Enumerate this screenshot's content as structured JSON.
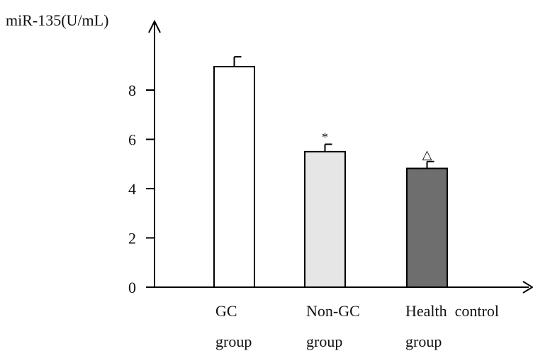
{
  "chart_data": {
    "type": "bar",
    "ylabel": "miR-135(U/mL)",
    "ylim": [
      0,
      10
    ],
    "yticks": [
      0,
      2,
      4,
      6,
      8
    ],
    "categories": [
      {
        "line1": "GC",
        "line2": "group"
      },
      {
        "line1": "Non-GC",
        "line2": "group"
      },
      {
        "line1": "Health  control",
        "line2": "group"
      }
    ],
    "values": [
      8.95,
      5.5,
      4.82
    ],
    "errors": [
      0.4,
      0.3,
      0.28
    ],
    "annotations": [
      "",
      "*",
      "△"
    ],
    "colors": [
      "#ffffff",
      "#e6e6e6",
      "#6e6e6e"
    ]
  }
}
